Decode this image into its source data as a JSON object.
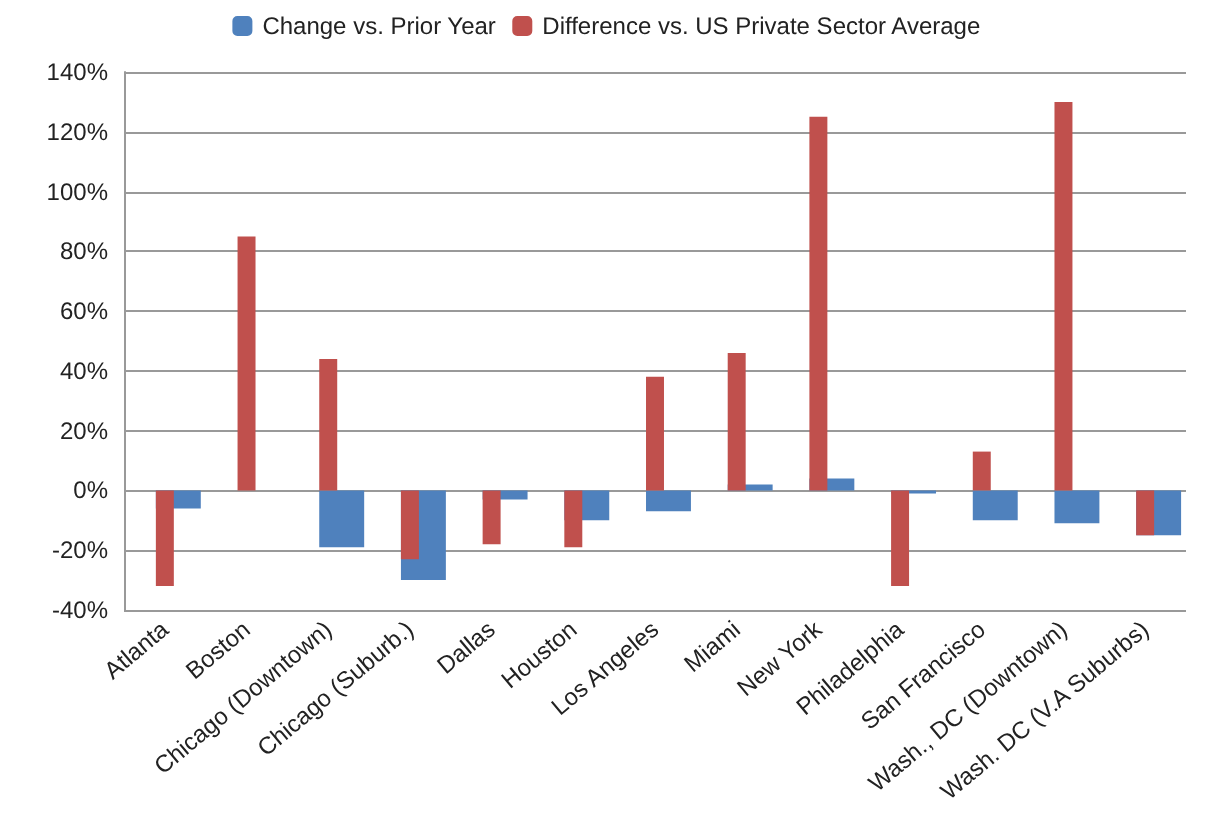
{
  "chart_data": {
    "type": "bar",
    "categories": [
      "Atlanta",
      "Boston",
      "Chicago (Downtown)",
      "Chicago (Suburb.)",
      "Dallas",
      "Houston",
      "Los Angeles",
      "Miami",
      "New York",
      "Philadelphia",
      "San Francisco",
      "Wash., DC (Downtown)",
      "Wash. DC (V.A Suburbs)"
    ],
    "series": [
      {
        "name": "Change vs. Prior Year",
        "color": "#4f81bd",
        "values": [
          -6,
          0,
          -19,
          -30,
          -3,
          -10,
          -7,
          2,
          4,
          -1,
          -10,
          -11,
          -15
        ]
      },
      {
        "name": "Difference vs. US Private Sector Average",
        "color": "#c0504d",
        "values": [
          -32,
          85,
          44,
          -23,
          -18,
          -19,
          38,
          46,
          125,
          -32,
          13,
          130,
          -15
        ]
      }
    ],
    "ylim": [
      -40,
      140
    ],
    "yticks": [
      {
        "value": -40,
        "label": "-40%"
      },
      {
        "value": -20,
        "label": "-20%"
      },
      {
        "value": 0,
        "label": "0%"
      },
      {
        "value": 20,
        "label": "20%"
      },
      {
        "value": 40,
        "label": "40%"
      },
      {
        "value": 60,
        "label": "60%"
      },
      {
        "value": 80,
        "label": "80%"
      },
      {
        "value": 100,
        "label": "100%"
      },
      {
        "value": 120,
        "label": "120%"
      },
      {
        "value": 140,
        "label": "140%"
      }
    ],
    "grid": "y",
    "legend": "top"
  }
}
